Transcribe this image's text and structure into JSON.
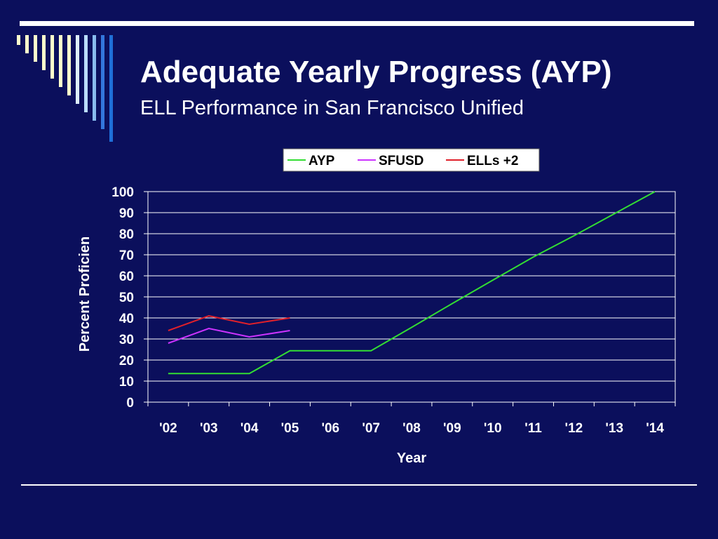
{
  "slide": {
    "title": "Adequate Yearly Progress (AYP)",
    "subtitle": "ELL Performance in San Francisco Unified",
    "background_color": "#0b0f5c",
    "accent_color": "#1f6fd8"
  },
  "chart_data": {
    "type": "line",
    "categories": [
      "'02",
      "'03",
      "'04",
      "'05",
      "'06",
      "'07",
      "'08",
      "'09",
      "'10",
      "'11",
      "'12",
      "'13",
      "'14"
    ],
    "series": [
      {
        "name": "AYP",
        "color": "#33dd33",
        "values": [
          13.6,
          13.6,
          13.6,
          24.4,
          24.4,
          24.4,
          35.5,
          46.8,
          57.9,
          68.9,
          79.0,
          89.5,
          100
        ]
      },
      {
        "name": "SFUSD",
        "color": "#cc33ff",
        "values": [
          28,
          35,
          31,
          34,
          null,
          null,
          null,
          null,
          null,
          null,
          null,
          null,
          null
        ]
      },
      {
        "name": "ELLs +2",
        "color": "#e0202a",
        "values": [
          34,
          41,
          37,
          40,
          null,
          null,
          null,
          null,
          null,
          null,
          null,
          null,
          null
        ]
      }
    ],
    "xlabel": "Year",
    "ylabel": "Percent Proficien",
    "ylim": [
      0,
      100
    ],
    "yticks": [
      "0",
      "10",
      "20",
      "30",
      "40",
      "50",
      "60",
      "70",
      "80",
      "90",
      "100"
    ],
    "grid": true,
    "legend_placement": "top"
  }
}
